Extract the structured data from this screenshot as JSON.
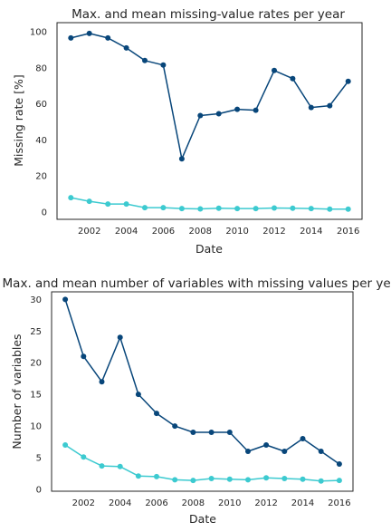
{
  "chart_data": [
    {
      "type": "line",
      "title": "Max. and mean missing-value rates per year",
      "xlabel": "Date",
      "ylabel": "Missing rate [%]",
      "x": [
        2001,
        2002,
        2003,
        2004,
        2005,
        2006,
        2007,
        2008,
        2009,
        2010,
        2011,
        2012,
        2013,
        2014,
        2015,
        2016
      ],
      "xlim": [
        2000.25,
        2016.75
      ],
      "ylim": [
        -4,
        105
      ],
      "xticks": [
        2002,
        2004,
        2006,
        2008,
        2010,
        2012,
        2014,
        2016
      ],
      "xtick_labels": [
        "2002",
        "2004",
        "2006",
        "2008",
        "2010",
        "2012",
        "2014",
        "2016"
      ],
      "yticks": [
        0,
        20,
        40,
        60,
        80,
        100
      ],
      "ytick_labels": [
        "0",
        "20",
        "40",
        "60",
        "80",
        "100"
      ],
      "grid": false,
      "series": [
        {
          "color": "#08467a",
          "values": [
            96.5,
            99,
            96.5,
            91,
            84,
            81.5,
            29.5,
            53.5,
            54.5,
            57,
            56.5,
            78.5,
            74,
            58,
            59,
            72.5
          ]
        },
        {
          "color": "#3ccad0",
          "values": [
            8,
            6,
            4.5,
            4.5,
            2.5,
            2.5,
            2,
            1.8,
            2.2,
            2,
            2,
            2.3,
            2.2,
            2,
            1.7,
            1.7
          ]
        }
      ]
    },
    {
      "type": "line",
      "title": "Max. and mean number of variables with missing values per year",
      "xlabel": "Date",
      "ylabel": "Number of variables",
      "x": [
        2001,
        2002,
        2003,
        2004,
        2005,
        2006,
        2007,
        2008,
        2009,
        2010,
        2011,
        2012,
        2013,
        2014,
        2015,
        2016
      ],
      "xlim": [
        2000.25,
        2016.75
      ],
      "ylim": [
        -0.3,
        31.2
      ],
      "xticks": [
        2002,
        2004,
        2006,
        2008,
        2010,
        2012,
        2014,
        2016
      ],
      "xtick_labels": [
        "2002",
        "2004",
        "2006",
        "2008",
        "2010",
        "2012",
        "2014",
        "2016"
      ],
      "yticks": [
        0,
        5,
        10,
        15,
        20,
        25,
        30
      ],
      "ytick_labels": [
        "0",
        "5",
        "10",
        "15",
        "20",
        "25",
        "30"
      ],
      "grid": false,
      "series": [
        {
          "color": "#08467a",
          "values": [
            30,
            21,
            17,
            24,
            15,
            12,
            10,
            9,
            9,
            9,
            6,
            7,
            6,
            8,
            6,
            4
          ]
        },
        {
          "color": "#3ccad0",
          "values": [
            7,
            5.1,
            3.7,
            3.6,
            2.1,
            2,
            1.5,
            1.4,
            1.7,
            1.6,
            1.5,
            1.8,
            1.7,
            1.6,
            1.3,
            1.4
          ]
        }
      ]
    }
  ]
}
